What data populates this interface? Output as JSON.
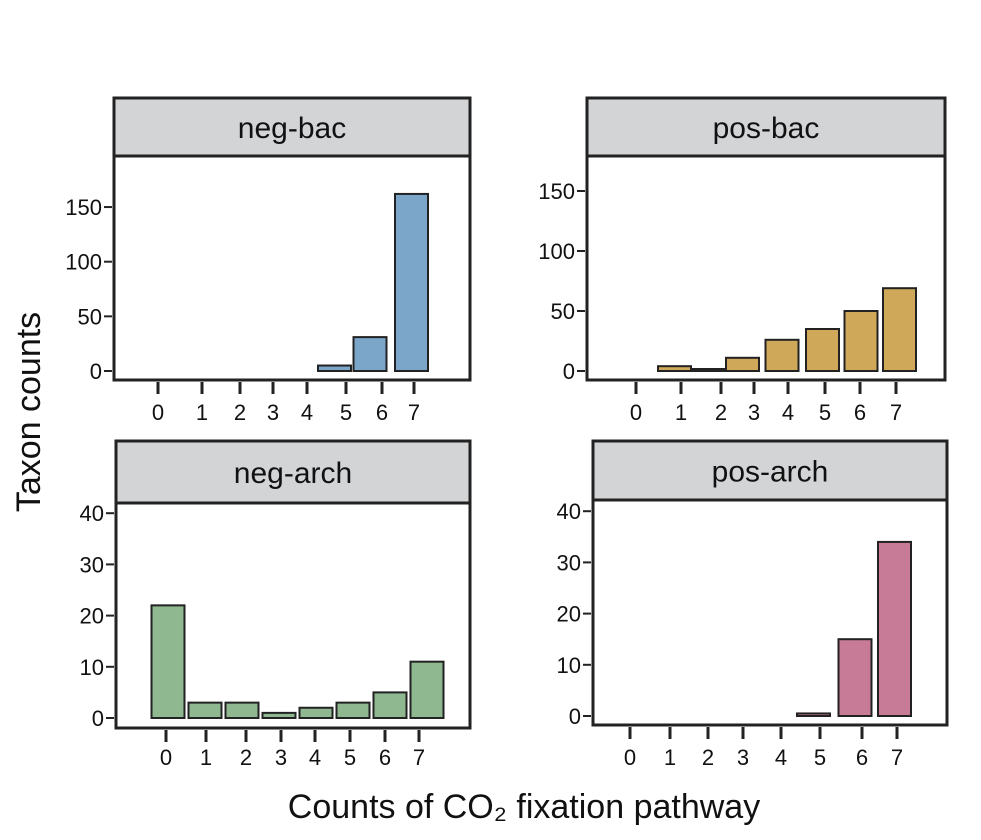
{
  "ylabel": "Taxon counts",
  "xlabel": "Counts of CO₂ fixation pathway",
  "chart_data": [
    {
      "type": "bar",
      "title": "neg-bac",
      "categories": [
        "0",
        "1",
        "2",
        "3",
        "4",
        "5",
        "6",
        "7"
      ],
      "values": [
        0,
        0,
        0,
        0,
        0,
        5,
        31,
        162
      ],
      "ylim": [
        0,
        175
      ],
      "yticks": [
        "0",
        "50",
        "100",
        "150"
      ],
      "color": "#7ba6c9"
    },
    {
      "type": "bar",
      "title": "pos-bac",
      "categories": [
        "0",
        "1",
        "2",
        "3",
        "4",
        "5",
        "6",
        "7"
      ],
      "values": [
        0,
        4,
        1,
        11,
        26,
        35,
        50,
        69
      ],
      "ylim": [
        0,
        175
      ],
      "yticks": [
        "0",
        "50",
        "100",
        "150"
      ],
      "color": "#d0a85a"
    },
    {
      "type": "bar",
      "title": "neg-arch",
      "categories": [
        "0",
        "1",
        "2",
        "3",
        "4",
        "5",
        "6",
        "7"
      ],
      "values": [
        22,
        3,
        3,
        1,
        2,
        3,
        5,
        11
      ],
      "ylim": [
        0,
        45
      ],
      "yticks": [
        "0",
        "10",
        "20",
        "30",
        "40"
      ],
      "color": "#8fb890"
    },
    {
      "type": "bar",
      "title": "pos-arch",
      "categories": [
        "0",
        "1",
        "2",
        "3",
        "4",
        "5",
        "6",
        "7"
      ],
      "values": [
        0,
        0,
        0,
        0,
        0,
        0.5,
        15,
        34
      ],
      "ylim": [
        0,
        45
      ],
      "yticks": [
        "0",
        "10",
        "20",
        "30",
        "40"
      ],
      "color": "#c77b96"
    }
  ]
}
